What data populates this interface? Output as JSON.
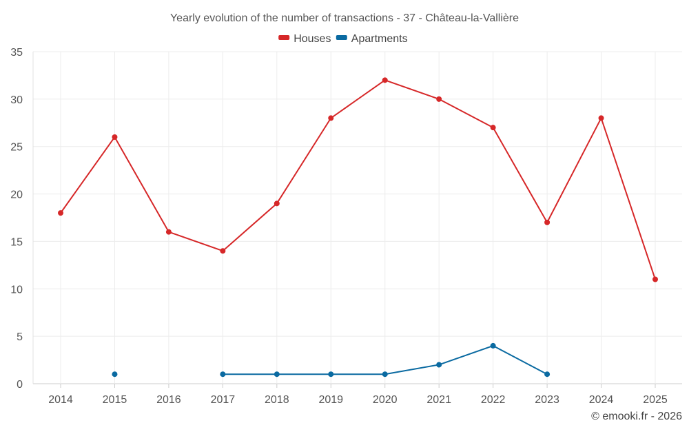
{
  "chart_data": {
    "type": "line",
    "title": "Yearly evolution of the number of transactions - 37 - Château-la-Vallière",
    "xlabel": "",
    "ylabel": "",
    "categories": [
      "2014",
      "2015",
      "2016",
      "2017",
      "2018",
      "2019",
      "2020",
      "2021",
      "2022",
      "2023",
      "2024",
      "2025"
    ],
    "ylim": [
      0,
      35
    ],
    "yticks": [
      0,
      5,
      10,
      15,
      20,
      25,
      30,
      35
    ],
    "grid": true,
    "legend_position": "top-center",
    "series": [
      {
        "name": "Houses",
        "color": "#d62728",
        "values": [
          18,
          26,
          16,
          14,
          19,
          28,
          32,
          30,
          27,
          17,
          28,
          11
        ]
      },
      {
        "name": "Apartments",
        "color": "#0a6aa1",
        "values": [
          null,
          1,
          null,
          1,
          1,
          1,
          1,
          2,
          4,
          1,
          null,
          null
        ]
      }
    ],
    "credit": "© emooki.fr - 2026"
  }
}
